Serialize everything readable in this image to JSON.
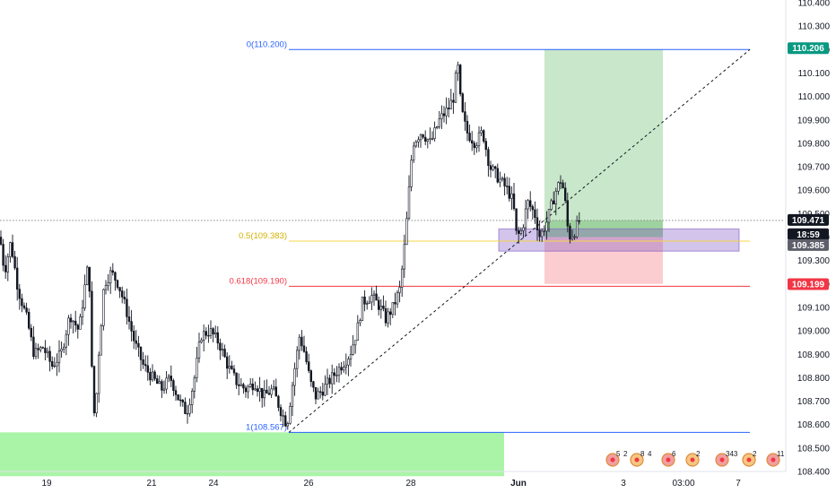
{
  "chart_data": {
    "type": "candlestick",
    "title": "",
    "ylim": [
      108.4,
      110.4
    ],
    "y_ticks": [
      "110.400",
      "110.300",
      "110.200",
      "110.100",
      "110.000",
      "109.900",
      "109.800",
      "109.700",
      "109.600",
      "109.500",
      "109.400",
      "109.300",
      "109.200",
      "109.100",
      "109.000",
      "108.900",
      "108.800",
      "108.700",
      "108.600",
      "108.500",
      "108.400"
    ],
    "x_ticks": [
      "19",
      "21",
      "24",
      "26",
      "28",
      "Jun",
      "3",
      "03:00",
      "7"
    ],
    "fib_levels": [
      {
        "label": "0(110.200)",
        "value": 110.2,
        "color": "#2962ff"
      },
      {
        "label": "0.5(109.383)",
        "value": 109.383,
        "color": "#f7d44a"
      },
      {
        "label": "0.618(109.190)",
        "value": 109.19,
        "color": "#f23645"
      },
      {
        "label": "1(108.567)",
        "value": 108.567,
        "color": "#2962ff"
      }
    ],
    "price_badges": [
      {
        "text": "110.206",
        "value": 110.206,
        "color": "#089981"
      },
      {
        "text": "109.471",
        "value": 109.471,
        "color": "#131722"
      },
      {
        "text": "18:59",
        "value": 109.42,
        "color": "#131722"
      },
      {
        "text": "109.385",
        "value": 109.385,
        "color": "#5d606b"
      },
      {
        "text": "109.199",
        "value": 109.199,
        "color": "#f23645"
      }
    ],
    "current_price": 109.471,
    "position": {
      "entry": 109.4,
      "target": 110.2,
      "stop": 109.2
    },
    "demand_zone": {
      "top": 108.567,
      "bottom": 108.38
    },
    "supply_demand_box": {
      "top": 109.435,
      "bottom": 109.34
    },
    "trendline": {
      "from": 108.567,
      "to": 110.2
    },
    "event_labels": [
      "5",
      "2",
      "8",
      "4",
      "6",
      "2",
      "343",
      "2",
      "11"
    ],
    "series_path": [
      [
        0,
        109.4
      ],
      [
        5,
        109.25
      ],
      [
        12,
        109.38
      ],
      [
        20,
        109.18
      ],
      [
        30,
        109.05
      ],
      [
        38,
        108.9
      ],
      [
        48,
        108.93
      ],
      [
        58,
        108.85
      ],
      [
        68,
        108.9
      ],
      [
        78,
        109.07
      ],
      [
        88,
        109.0
      ],
      [
        95,
        109.2
      ],
      [
        99,
        109.3
      ],
      [
        103,
        108.75
      ],
      [
        106,
        108.6
      ],
      [
        109,
        108.85
      ],
      [
        116,
        109.2
      ],
      [
        124,
        109.25
      ],
      [
        132,
        109.2
      ],
      [
        140,
        109.1
      ],
      [
        150,
        108.95
      ],
      [
        160,
        108.85
      ],
      [
        170,
        108.8
      ],
      [
        180,
        108.75
      ],
      [
        190,
        108.8
      ],
      [
        200,
        108.7
      ],
      [
        208,
        108.65
      ],
      [
        216,
        108.78
      ],
      [
        224,
        108.98
      ],
      [
        234,
        109.0
      ],
      [
        244,
        108.95
      ],
      [
        254,
        108.85
      ],
      [
        264,
        108.78
      ],
      [
        274,
        108.75
      ],
      [
        284,
        108.78
      ],
      [
        294,
        108.72
      ],
      [
        304,
        108.75
      ],
      [
        314,
        108.65
      ],
      [
        320,
        108.6
      ],
      [
        327,
        108.8
      ],
      [
        334,
        108.98
      ],
      [
        340,
        108.9
      ],
      [
        346,
        108.78
      ],
      [
        352,
        108.72
      ],
      [
        360,
        108.75
      ],
      [
        370,
        108.8
      ],
      [
        380,
        108.85
      ],
      [
        390,
        108.9
      ],
      [
        398,
        109.0
      ],
      [
        404,
        109.12
      ],
      [
        414,
        109.15
      ],
      [
        424,
        109.1
      ],
      [
        430,
        109.05
      ],
      [
        438,
        109.1
      ],
      [
        446,
        109.18
      ],
      [
        452,
        109.4
      ],
      [
        456,
        109.6
      ],
      [
        460,
        109.8
      ],
      [
        470,
        109.85
      ],
      [
        480,
        109.8
      ],
      [
        490,
        109.9
      ],
      [
        500,
        109.95
      ],
      [
        506,
        110.0
      ],
      [
        510,
        110.15
      ],
      [
        514,
        109.95
      ],
      [
        520,
        109.85
      ],
      [
        530,
        109.8
      ],
      [
        538,
        109.85
      ],
      [
        546,
        109.7
      ],
      [
        556,
        109.65
      ],
      [
        566,
        109.6
      ],
      [
        572,
        109.55
      ],
      [
        576,
        109.4
      ],
      [
        582,
        109.43
      ],
      [
        588,
        109.55
      ],
      [
        596,
        109.5
      ],
      [
        602,
        109.4
      ],
      [
        610,
        109.47
      ],
      [
        616,
        109.55
      ],
      [
        620,
        109.6
      ],
      [
        626,
        109.65
      ],
      [
        630,
        109.55
      ],
      [
        634,
        109.4
      ],
      [
        640,
        109.42
      ],
      [
        646,
        109.47
      ]
    ]
  }
}
